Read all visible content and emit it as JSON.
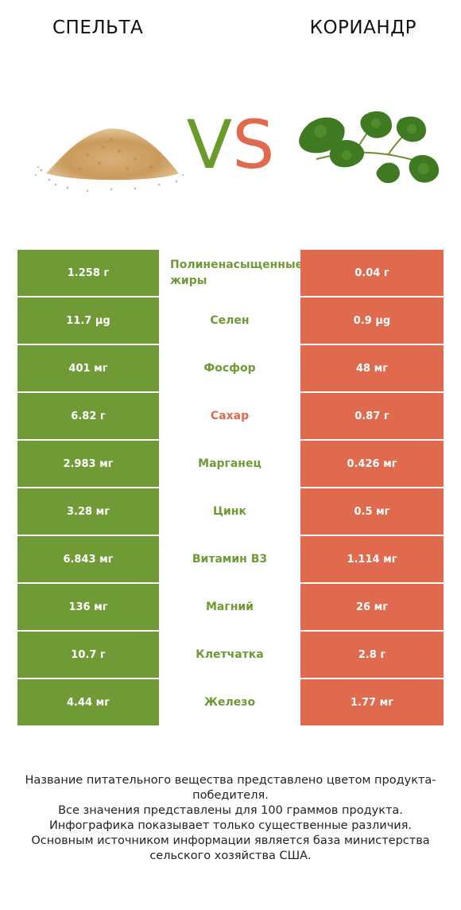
{
  "header": {
    "left_food": "СПЕЛЬТА",
    "right_food": "КОРИАНДР",
    "vs_v": "V",
    "vs_s": "S"
  },
  "colors": {
    "left_brand": "#6f9a36",
    "right_brand": "#e06a4e"
  },
  "rows": [
    {
      "left": "1.258 г",
      "nutrient": "Полиненасыщенные жиры",
      "right": "0.04 г",
      "winner": "left"
    },
    {
      "left": "11.7 µg",
      "nutrient": "Селен",
      "right": "0.9 µg",
      "winner": "left"
    },
    {
      "left": "401 мг",
      "nutrient": "Фосфор",
      "right": "48 мг",
      "winner": "left"
    },
    {
      "left": "6.82 г",
      "nutrient": "Сахар",
      "right": "0.87 г",
      "winner": "right"
    },
    {
      "left": "2.983 мг",
      "nutrient": "Марганец",
      "right": "0.426 мг",
      "winner": "left"
    },
    {
      "left": "3.28 мг",
      "nutrient": "Цинк",
      "right": "0.5 мг",
      "winner": "left"
    },
    {
      "left": "6.843 мг",
      "nutrient": "Витамин B3",
      "right": "1.114 мг",
      "winner": "left"
    },
    {
      "left": "136 мг",
      "nutrient": "Магний",
      "right": "26 мг",
      "winner": "left"
    },
    {
      "left": "10.7 г",
      "nutrient": "Клетчатка",
      "right": "2.8 г",
      "winner": "left"
    },
    {
      "left": "4.44 мг",
      "nutrient": "Железо",
      "right": "1.77 мг",
      "winner": "left"
    }
  ],
  "footnote": {
    "line1": "Название питательного вещества представлено цветом продукта-победителя.",
    "line2": "Все значения представлены для 100 граммов продукта.",
    "line3": "Инфографика показывает только существенные различия.",
    "line4": "Основным источником информации является база министерства сельского хозяйства США."
  },
  "icons": {
    "left_food_image": "spelt-grain-pile-icon",
    "right_food_image": "cilantro-leaves-icon"
  }
}
